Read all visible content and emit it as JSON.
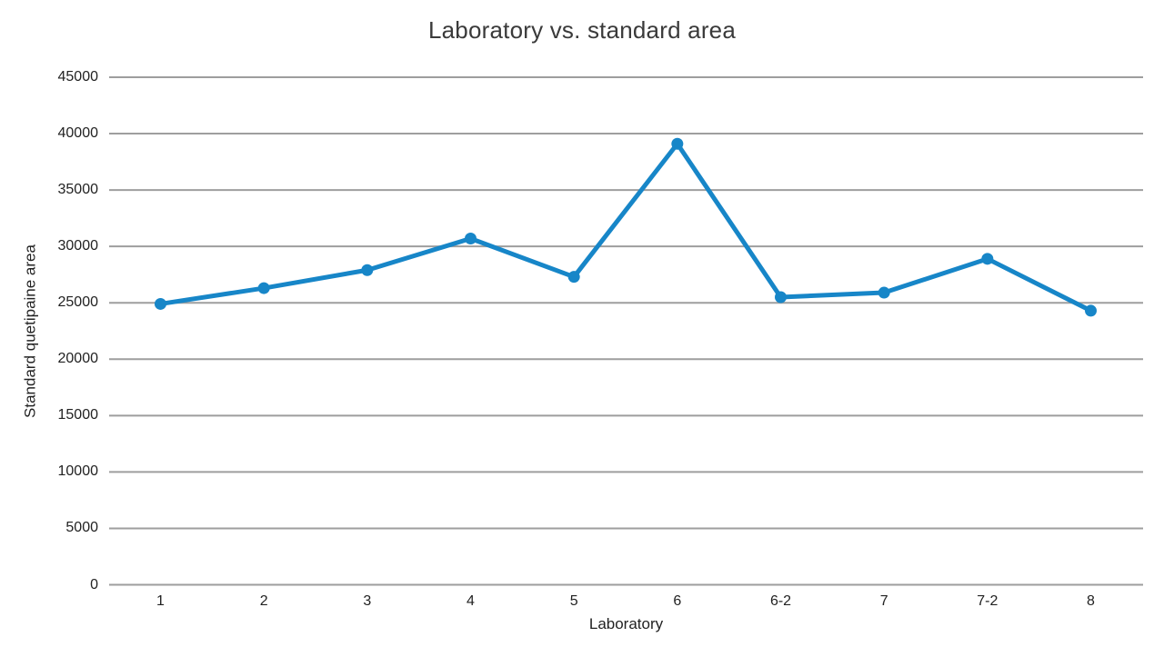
{
  "chart_data": {
    "type": "line",
    "title": "Laboratory vs. standard area",
    "xlabel": "Laboratory",
    "ylabel": "Standard quetipaine area",
    "categories": [
      "1",
      "2",
      "3",
      "4",
      "5",
      "6",
      "6-2",
      "7",
      "7-2",
      "8"
    ],
    "series": [
      {
        "name": "Standard quetipaine area",
        "values": [
          24900,
          26300,
          27900,
          30700,
          27300,
          39100,
          25500,
          25900,
          28900,
          24300
        ]
      }
    ],
    "ylim": [
      0,
      45000
    ],
    "ytick_step": 5000,
    "yticks": [
      0,
      5000,
      10000,
      15000,
      20000,
      25000,
      30000,
      35000,
      40000,
      45000
    ],
    "grid": "horizontal-only",
    "legend_position": "none",
    "marker": "circle",
    "colors": {
      "line": "#1786c8",
      "marker": "#1786c8",
      "gridline": "#9e9e9e",
      "tick_text": "#222222",
      "title_text": "#3a3a3a"
    }
  }
}
